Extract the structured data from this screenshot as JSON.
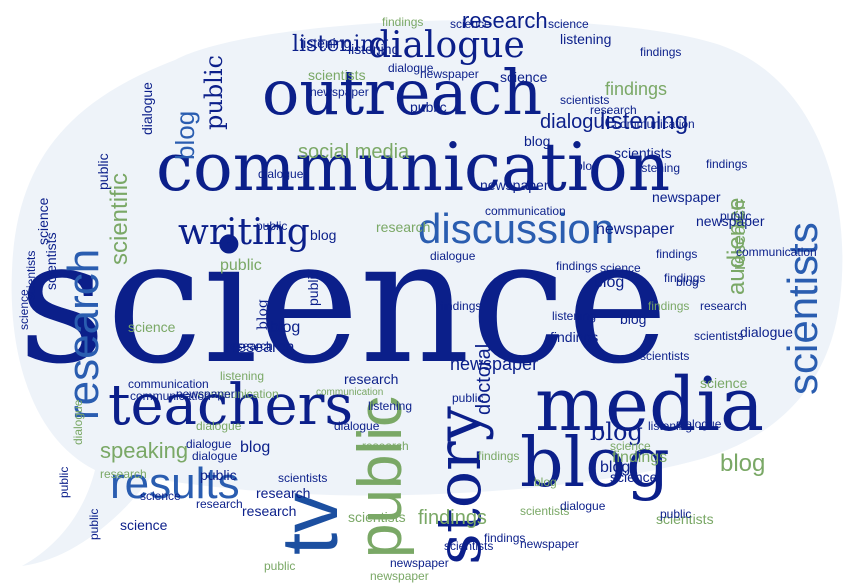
{
  "palette": {
    "navy": "#0b1f8a",
    "blue": "#1c4fa0",
    "mid": "#2a5db0",
    "green": "#7aa866",
    "lightgreen": "#9cc08a",
    "bubble": "#eef3f9"
  },
  "words": [
    {
      "text": "science"
    },
    {
      "text": "communication"
    },
    {
      "text": "outreach"
    },
    {
      "text": "media"
    },
    {
      "text": "teachers"
    },
    {
      "text": "blog"
    },
    {
      "text": "story"
    },
    {
      "text": "public"
    },
    {
      "text": "tv"
    },
    {
      "text": "results"
    },
    {
      "text": "discussion"
    },
    {
      "text": "dialogue"
    },
    {
      "text": "writing"
    },
    {
      "text": "research"
    },
    {
      "text": "scientists"
    },
    {
      "text": "social media"
    },
    {
      "text": "listening"
    },
    {
      "text": "findings"
    },
    {
      "text": "speaking"
    },
    {
      "text": "newspaper"
    },
    {
      "text": "doctoral"
    },
    {
      "text": "audience"
    },
    {
      "text": "scientific"
    },
    {
      "text": "blog"
    },
    {
      "text": "public"
    },
    {
      "text": "research"
    },
    {
      "text": "listening"
    },
    {
      "text": "newspaper"
    },
    {
      "text": "science"
    },
    {
      "text": "findings"
    },
    {
      "text": "dialogue"
    },
    {
      "text": "blog"
    },
    {
      "text": "communication"
    },
    {
      "text": "scientists"
    },
    {
      "text": "public"
    },
    {
      "text": "research"
    },
    {
      "text": "findings"
    },
    {
      "text": "blog"
    },
    {
      "text": "newspaper"
    },
    {
      "text": "dialogue"
    },
    {
      "text": "listening"
    },
    {
      "text": "science"
    },
    {
      "text": "scientists"
    },
    {
      "text": "public"
    },
    {
      "text": "communication"
    },
    {
      "text": "research"
    },
    {
      "text": "blog"
    },
    {
      "text": "findings"
    },
    {
      "text": "dialogue"
    },
    {
      "text": "newspaper"
    },
    {
      "text": "listening"
    },
    {
      "text": "science"
    },
    {
      "text": "scientists"
    },
    {
      "text": "public"
    },
    {
      "text": "blog"
    },
    {
      "text": "research"
    },
    {
      "text": "findings"
    },
    {
      "text": "newspaper"
    },
    {
      "text": "communication"
    },
    {
      "text": "dialogue"
    },
    {
      "text": "listening"
    },
    {
      "text": "science"
    },
    {
      "text": "scientists"
    },
    {
      "text": "public"
    },
    {
      "text": "blog"
    },
    {
      "text": "research"
    },
    {
      "text": "findings"
    },
    {
      "text": "newspaper"
    },
    {
      "text": "communication"
    },
    {
      "text": "dialogue"
    },
    {
      "text": "listening"
    },
    {
      "text": "science"
    },
    {
      "text": "scientists"
    },
    {
      "text": "public"
    },
    {
      "text": "blog"
    },
    {
      "text": "research"
    },
    {
      "text": "findings"
    },
    {
      "text": "newspaper"
    },
    {
      "text": "dialogue"
    },
    {
      "text": "listening"
    },
    {
      "text": "science"
    },
    {
      "text": "scientists"
    },
    {
      "text": "public"
    },
    {
      "text": "blog"
    },
    {
      "text": "research"
    },
    {
      "text": "findings"
    },
    {
      "text": "dialogue"
    },
    {
      "text": "communication"
    },
    {
      "text": "newspaper"
    },
    {
      "text": "science"
    },
    {
      "text": "scientists"
    },
    {
      "text": "public"
    },
    {
      "text": "research"
    },
    {
      "text": "findings"
    },
    {
      "text": "blog"
    },
    {
      "text": "listening"
    },
    {
      "text": "dialogue"
    },
    {
      "text": "science"
    },
    {
      "text": "scientists"
    },
    {
      "text": "public"
    },
    {
      "text": "research"
    },
    {
      "text": "blog"
    },
    {
      "text": "findings"
    },
    {
      "text": "dialogue"
    },
    {
      "text": "newspaper"
    },
    {
      "text": "listening"
    },
    {
      "text": "science"
    },
    {
      "text": "scientists"
    },
    {
      "text": "public"
    },
    {
      "text": "research"
    },
    {
      "text": "blog"
    },
    {
      "text": "findings"
    },
    {
      "text": "dialogue"
    },
    {
      "text": "communication"
    },
    {
      "text": "science"
    },
    {
      "text": "scientists"
    },
    {
      "text": "public"
    },
    {
      "text": "research"
    },
    {
      "text": "blog"
    },
    {
      "text": "findings"
    },
    {
      "text": "dialogue"
    },
    {
      "text": "newspaper"
    },
    {
      "text": "listening"
    },
    {
      "text": "science"
    },
    {
      "text": "scientists"
    },
    {
      "text": "public"
    },
    {
      "text": "research"
    },
    {
      "text": "blog"
    },
    {
      "text": "findings"
    },
    {
      "text": "dialogue"
    },
    {
      "text": "communication"
    },
    {
      "text": "newspaper"
    },
    {
      "text": "science"
    },
    {
      "text": "scientists"
    },
    {
      "text": "public"
    },
    {
      "text": "research"
    },
    {
      "text": "blog"
    },
    {
      "text": "findings"
    },
    {
      "text": "dialogue"
    },
    {
      "text": "listening"
    }
  ]
}
